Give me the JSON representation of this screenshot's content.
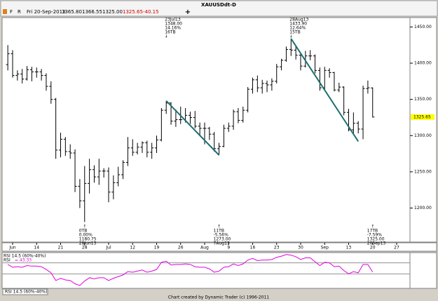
{
  "header": {
    "title": "XAUUSDdt-D",
    "buttons": [
      "F",
      "R"
    ],
    "date": "Fri 20-Sep-2013",
    "open": "1365.80",
    "high": "1366.55",
    "low": "1325.00",
    "close": "1325.65",
    "change": "-40.15"
  },
  "chart_data": {
    "type": "ohlc",
    "categories": [
      null,
      "Jun",
      null,
      null,
      null,
      null,
      "14",
      null,
      null,
      null,
      null,
      "21",
      null,
      null,
      null,
      null,
      "28",
      null,
      null,
      null,
      null,
      "Jul",
      null,
      null,
      null,
      null,
      "12",
      null,
      null,
      null,
      null,
      "19",
      null,
      null,
      null,
      null,
      "26",
      null,
      null,
      null,
      null,
      "Aug",
      null,
      null,
      null,
      null,
      "9",
      null,
      null,
      null,
      null,
      "16",
      null,
      null,
      null,
      null,
      "23",
      null,
      null,
      null,
      null,
      "30",
      null,
      null,
      null,
      null,
      "Sep",
      null,
      null,
      null,
      null,
      "13",
      null,
      null,
      null,
      null,
      "20"
    ],
    "future_categories": [
      null,
      null,
      null,
      null,
      "27"
    ],
    "open": [
      1398,
      1413,
      1383,
      1385,
      1378,
      1391,
      1388,
      1388,
      1383,
      1368,
      1350,
      1280,
      1295,
      1278,
      1276,
      1230,
      1210,
      1234,
      1253,
      1243,
      1251,
      1251,
      1222,
      1235,
      1246,
      1263,
      1283,
      1277,
      1284,
      1290,
      1277,
      1283,
      1294,
      1335,
      1345,
      1320,
      1322,
      1322,
      1328,
      1325,
      1313,
      1310,
      1310,
      1302,
      1282,
      1285,
      1310,
      1313,
      1333,
      1321,
      1335,
      1364,
      1377,
      1366,
      1372,
      1370,
      1375,
      1395,
      1404,
      1419,
      1418,
      1411,
      1396,
      1410,
      1410,
      1390,
      1366,
      1390,
      1387,
      1363,
      1367,
      1332,
      1308,
      1317,
      1309,
      1365,
      1365.8
    ],
    "high": [
      1425,
      1418,
      1390,
      1392,
      1396,
      1395,
      1394,
      1392,
      1386,
      1375,
      1352,
      1304,
      1298,
      1288,
      1281,
      1240,
      1258,
      1268,
      1259,
      1268,
      1255,
      1256,
      1245,
      1257,
      1266,
      1298,
      1295,
      1290,
      1292,
      1293,
      1290,
      1300,
      1338,
      1348,
      1346,
      1336,
      1340,
      1338,
      1333,
      1334,
      1318,
      1318,
      1312,
      1305,
      1290,
      1315,
      1318,
      1336,
      1338,
      1340,
      1367,
      1380,
      1383,
      1377,
      1376,
      1379,
      1399,
      1406,
      1423,
      1433.9,
      1423,
      1415,
      1417,
      1418,
      1412,
      1394,
      1395,
      1393,
      1388,
      1373,
      1368,
      1337,
      1332,
      1320,
      1369,
      1376,
      1366.55
    ],
    "low": [
      1390,
      1380,
      1376,
      1372,
      1376,
      1375,
      1380,
      1376,
      1362,
      1344,
      1268,
      1270,
      1272,
      1268,
      1222,
      1200,
      1180.75,
      1220,
      1235,
      1232,
      1242,
      1208,
      1212,
      1230,
      1240,
      1258,
      1272,
      1274,
      1276,
      1270,
      1268,
      1276,
      1292,
      1330,
      1315,
      1312,
      1316,
      1318,
      1316,
      1310,
      1300,
      1288,
      1294,
      1278,
      1273,
      1284,
      1305,
      1308,
      1317,
      1318,
      1332,
      1358,
      1360,
      1358,
      1360,
      1362,
      1372,
      1390,
      1402,
      1410,
      1405,
      1390,
      1394,
      1404,
      1386,
      1362,
      1364,
      1380,
      1361,
      1360,
      1328,
      1306,
      1302,
      1303,
      1295,
      1358,
      1325
    ],
    "close": [
      1413,
      1383,
      1385,
      1378,
      1391,
      1388,
      1388,
      1383,
      1368,
      1350,
      1280,
      1295,
      1278,
      1276,
      1230,
      1210,
      1234,
      1253,
      1243,
      1251,
      1251,
      1222,
      1235,
      1246,
      1263,
      1283,
      1277,
      1284,
      1290,
      1277,
      1283,
      1294,
      1335,
      1345,
      1320,
      1322,
      1322,
      1328,
      1325,
      1313,
      1310,
      1310,
      1302,
      1282,
      1285,
      1310,
      1313,
      1333,
      1321,
      1335,
      1364,
      1377,
      1366,
      1372,
      1370,
      1375,
      1395,
      1404,
      1419,
      1418,
      1411,
      1396,
      1410,
      1410,
      1390,
      1366,
      1390,
      1387,
      1363,
      1367,
      1332,
      1308,
      1317,
      1309,
      1365,
      1366,
      1325.65
    ],
    "color": "#000000",
    "ylim": [
      1153,
      1463
    ],
    "yticks": [
      {
        "value": 1200,
        "label": "1200.00"
      },
      {
        "value": 1250,
        "label": "1250.00"
      },
      {
        "value": 1300,
        "label": "1300.00"
      },
      {
        "value": 1350,
        "label": "1350.00"
      },
      {
        "value": 1400,
        "label": "1400.00"
      },
      {
        "value": 1450,
        "label": "1450.00"
      }
    ],
    "last_price": {
      "value": 1325.65,
      "label": "1325.65",
      "color": "#ffff00"
    },
    "grid": false,
    "trendlines": [
      {
        "from_bar": 33,
        "from": 1348,
        "to_bar": 44,
        "to": 1273,
        "color": "#1f6f6f"
      },
      {
        "from_bar": 59,
        "from": 1433.9,
        "to_bar": 73,
        "to": 1292,
        "color": "#1f6f6f"
      }
    ],
    "annotations": [
      {
        "bar": 16,
        "position": "below",
        "lines": [
          "0TB",
          "0.00%",
          "1180.75",
          "28Jun13"
        ]
      },
      {
        "bar": 33,
        "position": "above",
        "lines": [
          "23Jul13",
          "1348.00",
          "14.16%",
          "16TB"
        ]
      },
      {
        "bar": 44,
        "position": "below",
        "lines": [
          "11TB",
          "-5.56%",
          "1273.00",
          "7Aug13"
        ]
      },
      {
        "bar": 59,
        "position": "above",
        "lines": [
          "28Aug13",
          "1433.90",
          "12.64%",
          "15TB"
        ]
      },
      {
        "bar": 76,
        "position": "below",
        "lines": [
          "17TB",
          "-7.59%",
          "1325.00",
          "20Sep13"
        ]
      }
    ],
    "indicator": {
      "title": "RSI 14.5 (60%-40%)",
      "name": "RSI",
      "readout": "= 43.33",
      "color": "#e000e0",
      "levels": [
        60,
        40
      ],
      "ylim": [
        15,
        76
      ],
      "values": [
        57,
        52,
        53,
        52,
        55,
        54,
        54,
        53,
        48,
        42,
        28,
        32,
        29,
        28,
        22,
        19,
        27,
        33,
        31,
        33,
        33,
        28,
        32,
        35,
        38,
        44,
        43,
        45,
        47,
        43,
        45,
        48,
        61,
        63,
        56,
        57,
        57,
        58,
        57,
        53,
        52,
        52,
        49,
        43,
        45,
        52,
        53,
        58,
        55,
        58,
        65,
        68,
        64,
        65,
        65,
        66,
        70,
        72,
        75,
        74,
        71,
        66,
        69,
        69,
        62,
        55,
        61,
        60,
        53,
        54,
        46,
        40,
        44,
        42,
        57,
        57,
        43.33
      ]
    },
    "tab": "RSI 14.5 (60%-40%)",
    "footer": "Chart created by Dynamic Trader  (c) 1996-2011"
  }
}
